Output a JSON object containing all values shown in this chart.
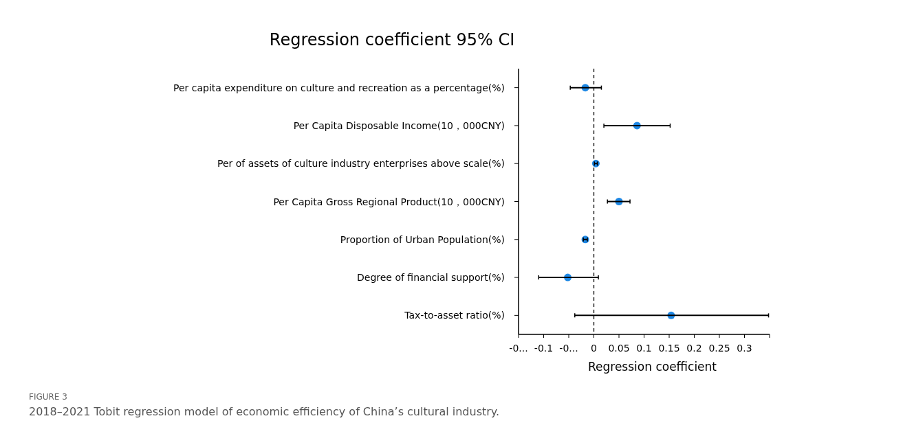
{
  "chart_data": {
    "type": "scatter",
    "orientation": "horizontal",
    "title": "Regression coefficient 95% CI",
    "xlabel": "Regression coefficient",
    "categories": [
      "Per capita expenditure on culture and recreation as a percentage(%)",
      "Per Capita Disposable Income(10，000CNY)",
      "Per of assets of culture industry enterprises above scale(%)",
      "Per Capita Gross Regional Product(10，000CNY)",
      "Proportion of Urban Population(%)",
      "Degree of financial support(%)",
      "Tax-to-asset ratio(%)"
    ],
    "series": [
      {
        "color": "#1e88e5",
        "values": [
          -0.017,
          0.086,
          0.004,
          0.05,
          -0.017,
          -0.052,
          0.154
        ],
        "errors": [
          [
            -0.047,
            0.015
          ],
          [
            0.02,
            0.152
          ],
          [
            0.001,
            0.007
          ],
          [
            0.027,
            0.072
          ],
          [
            -0.021,
            -0.013
          ],
          [
            -0.11,
            0.009
          ],
          [
            -0.038,
            0.348
          ]
        ]
      }
    ],
    "marker": "circle",
    "xlim": [
      -0.15,
      0.35
    ],
    "xticks": [
      {
        "value": -0.15,
        "label": "-0..."
      },
      -0.1,
      {
        "value": -0.05,
        "label": "-0..."
      },
      0,
      0.05,
      0.1,
      0.15,
      0.2,
      0.25,
      0.3,
      {
        "value": 0.35,
        "label": null
      }
    ],
    "ref_lines": [
      {
        "axis": "x",
        "value": 0,
        "line_style": "dashed",
        "color": "#000000"
      }
    ],
    "annotations": [
      "FIGURE 3",
      "2018–2021 Tobit regression model of economic efficiency of China’s cultural industry."
    ]
  }
}
